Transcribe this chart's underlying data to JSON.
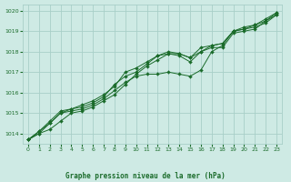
{
  "xlabel_label": "Graphe pression niveau de la mer (hPa)",
  "background_color": "#ceeae4",
  "grid_color": "#a8cfc8",
  "line_color": "#1a6b2a",
  "text_color": "#1a6b2a",
  "xlim": [
    -0.5,
    23.5
  ],
  "ylim": [
    1013.5,
    1020.3
  ],
  "yticks": [
    1014,
    1015,
    1016,
    1017,
    1018,
    1019,
    1020
  ],
  "xticks": [
    0,
    1,
    2,
    3,
    4,
    5,
    6,
    7,
    8,
    9,
    10,
    11,
    12,
    13,
    14,
    15,
    16,
    17,
    18,
    19,
    20,
    21,
    22,
    23
  ],
  "series": [
    {
      "x": [
        0,
        1,
        2,
        3,
        4,
        5,
        6,
        7,
        8,
        9,
        10,
        11,
        12,
        13,
        14,
        15,
        16,
        17,
        18,
        19,
        20,
        21,
        22,
        23
      ],
      "y": [
        1013.7,
        1014.0,
        1014.2,
        1014.6,
        1015.0,
        1015.1,
        1015.3,
        1015.6,
        1015.9,
        1016.4,
        1016.9,
        1017.3,
        1017.6,
        1017.9,
        1017.9,
        1017.7,
        1018.0,
        1018.2,
        1018.2,
        1018.9,
        1019.0,
        1019.1,
        1019.5,
        1019.8
      ]
    },
    {
      "x": [
        0,
        1,
        2,
        3,
        4,
        5,
        6,
        7,
        8,
        9,
        10,
        11,
        12,
        13,
        14,
        15,
        16,
        17,
        18,
        19,
        20,
        21,
        22,
        23
      ],
      "y": [
        1013.7,
        1014.0,
        1014.5,
        1015.0,
        1015.1,
        1015.2,
        1015.4,
        1015.7,
        1016.1,
        1016.5,
        1016.8,
        1016.9,
        1016.9,
        1017.0,
        1016.9,
        1016.8,
        1017.1,
        1018.0,
        1018.3,
        1019.0,
        1019.1,
        1019.2,
        1019.4,
        1019.8
      ]
    },
    {
      "x": [
        0,
        1,
        2,
        3,
        4,
        5,
        6,
        7,
        8,
        9,
        10,
        11,
        12,
        13,
        14,
        15,
        16,
        17,
        18,
        19,
        20,
        21,
        22,
        23
      ],
      "y": [
        1013.7,
        1014.1,
        1014.5,
        1015.0,
        1015.2,
        1015.3,
        1015.5,
        1015.8,
        1016.4,
        1016.8,
        1017.0,
        1017.4,
        1017.8,
        1017.9,
        1017.8,
        1017.5,
        1018.0,
        1018.3,
        1018.4,
        1019.0,
        1019.1,
        1019.3,
        1019.6,
        1019.9
      ]
    },
    {
      "x": [
        0,
        1,
        2,
        3,
        4,
        5,
        6,
        7,
        8,
        9,
        10,
        11,
        12,
        13,
        14,
        15,
        16,
        17,
        18,
        19,
        20,
        21,
        22,
        23
      ],
      "y": [
        1013.7,
        1014.1,
        1014.6,
        1015.1,
        1015.2,
        1015.4,
        1015.6,
        1015.9,
        1016.3,
        1017.0,
        1017.2,
        1017.5,
        1017.8,
        1018.0,
        1017.9,
        1017.7,
        1018.2,
        1018.3,
        1018.4,
        1019.0,
        1019.2,
        1019.3,
        1019.5,
        1019.9
      ]
    }
  ]
}
